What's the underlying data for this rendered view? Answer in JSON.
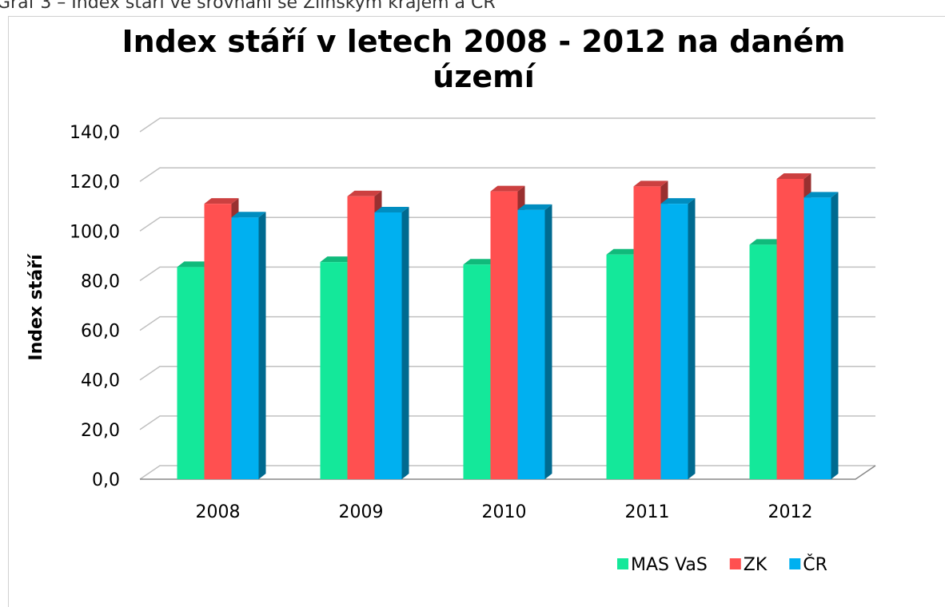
{
  "caption": "Graf 3 – Index stáří ve srovnání se Zlínským krajem a ČR",
  "chart_data": {
    "type": "bar3d",
    "title": "Index stáří v letech 2008 - 2012 na daném území",
    "ylabel": "Index stáří",
    "categories": [
      "2008",
      "2009",
      "2010",
      "2011",
      "2012"
    ],
    "series": [
      {
        "name": "MAS VaS",
        "color": "#14e89a",
        "values": [
          85.5,
          87.5,
          86.5,
          90.5,
          94.5
        ]
      },
      {
        "name": "ZK",
        "color": "#ff5050",
        "values": [
          111,
          114,
          116,
          118,
          121
        ]
      },
      {
        "name": "ČR",
        "color": "#00b0f0",
        "values": [
          105.5,
          107.5,
          108.5,
          111,
          113.5
        ]
      }
    ],
    "ylim": [
      0,
      140
    ],
    "yticks": [
      {
        "value": 0,
        "label": "0,0"
      },
      {
        "value": 20,
        "label": "20,0"
      },
      {
        "value": 40,
        "label": "40,0"
      },
      {
        "value": 60,
        "label": "60,0"
      },
      {
        "value": 80,
        "label": "80,0"
      },
      {
        "value": 100,
        "label": "100,0"
      },
      {
        "value": 120,
        "label": "120,0"
      },
      {
        "value": 140,
        "label": "140,0"
      }
    ],
    "grid": true,
    "legend": "bottom-right"
  }
}
